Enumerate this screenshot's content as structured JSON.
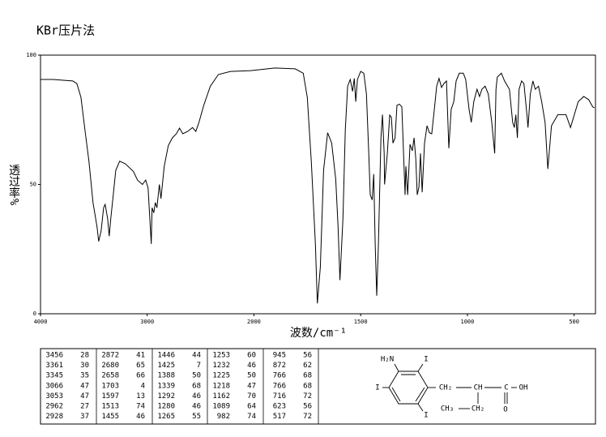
{
  "chart_data": {
    "type": "line",
    "title": "KBr压片法",
    "xlabel": "波数/cm⁻¹",
    "ylabel": "透过率%",
    "color": "#000000",
    "xlim": [
      4000,
      400
    ],
    "xticks": [
      4000,
      3000,
      2000,
      1500,
      1000,
      500
    ],
    "ylim": [
      0,
      100
    ],
    "yticks": [
      0,
      50,
      100
    ],
    "x": [
      4000,
      3886,
      3697,
      3659,
      3621,
      3583,
      3545,
      3508,
      3470,
      3455,
      3432,
      3409,
      3394,
      3371,
      3356,
      3341,
      3318,
      3295,
      3258,
      3205,
      3129,
      3091,
      3045,
      3015,
      2992,
      2962,
      2955,
      2939,
      2924,
      2909,
      2886,
      2871,
      2841,
      2803,
      2765,
      2727,
      2697,
      2667,
      2621,
      2576,
      2545,
      2515,
      2470,
      2409,
      2333,
      2220,
      2030,
      1902,
      1807,
      1769,
      1750,
      1731,
      1712,
      1703,
      1689,
      1674,
      1655,
      1636,
      1617,
      1606,
      1597,
      1583,
      1572,
      1561,
      1549,
      1538,
      1530,
      1523,
      1515,
      1500,
      1485,
      1473,
      1462,
      1455,
      1446,
      1439,
      1432,
      1425,
      1417,
      1405,
      1398,
      1390,
      1388,
      1375,
      1364,
      1356,
      1349,
      1339,
      1330,
      1318,
      1307,
      1292,
      1288,
      1280,
      1269,
      1258,
      1250,
      1242,
      1235,
      1227,
      1220,
      1212,
      1201,
      1189,
      1178,
      1167,
      1155,
      1144,
      1133,
      1121,
      1110,
      1098,
      1087,
      1076,
      1064,
      1053,
      1038,
      1019,
      1008,
      992,
      982,
      970,
      955,
      943,
      932,
      917,
      902,
      886,
      872,
      866,
      860,
      841,
      826,
      803,
      788,
      780,
      773,
      766,
      758,
      746,
      735,
      720,
      716,
      705,
      693,
      682,
      667,
      652,
      636,
      623,
      606,
      576,
      538,
      517,
      481,
      455,
      432,
      413,
      405
    ],
    "values": [
      90.6,
      90.6,
      90,
      89,
      83.7,
      71,
      58.6,
      43,
      33.5,
      28,
      32,
      41,
      42.3,
      36.7,
      30,
      37,
      46,
      55.5,
      59,
      58,
      55,
      51.7,
      50,
      51.7,
      48.6,
      27,
      41,
      39,
      43,
      41,
      50,
      44.5,
      57,
      65,
      68,
      69.6,
      71.8,
      69.6,
      70.5,
      72,
      70.5,
      74,
      80.6,
      88,
      92.5,
      93.7,
      94,
      95,
      94.7,
      93,
      83.7,
      58.6,
      27,
      4,
      18,
      55.5,
      70,
      66,
      52,
      33.5,
      13,
      36.7,
      71,
      88,
      90.6,
      86,
      91,
      82,
      90.6,
      93.7,
      93,
      85,
      61.8,
      46,
      44,
      54,
      27,
      7,
      27,
      68,
      77,
      62,
      50,
      62,
      76.8,
      76,
      66,
      68,
      80.6,
      81,
      80,
      46,
      57,
      46,
      65.5,
      63,
      68,
      60,
      46,
      49,
      62,
      47,
      66,
      72.7,
      70,
      69.6,
      79,
      88,
      91,
      87.5,
      89,
      90,
      64,
      79,
      82,
      90,
      93,
      93,
      90.6,
      79,
      74,
      82,
      86.8,
      84,
      86.8,
      88,
      85,
      74,
      62,
      86.8,
      91.5,
      93,
      90,
      86.8,
      74,
      72,
      77,
      68,
      86.8,
      90,
      89,
      76,
      72,
      85,
      90,
      86.8,
      88,
      82,
      74,
      56,
      72.7,
      77,
      77,
      72,
      82,
      84,
      82.8,
      80,
      79.6
    ]
  },
  "peak_table": [
    [
      [
        3456,
        28
      ],
      [
        3361,
        30
      ],
      [
        3345,
        35
      ],
      [
        3066,
        47
      ],
      [
        3053,
        47
      ],
      [
        2962,
        27
      ],
      [
        2928,
        37
      ]
    ],
    [
      [
        2872,
        41
      ],
      [
        2680,
        65
      ],
      [
        2658,
        66
      ],
      [
        1703,
        4
      ],
      [
        1597,
        13
      ],
      [
        1513,
        74
      ],
      [
        1455,
        46
      ]
    ],
    [
      [
        1446,
        44
      ],
      [
        1425,
        7
      ],
      [
        1388,
        50
      ],
      [
        1339,
        68
      ],
      [
        1292,
        46
      ],
      [
        1280,
        46
      ],
      [
        1265,
        55
      ]
    ],
    [
      [
        1253,
        60
      ],
      [
        1232,
        46
      ],
      [
        1225,
        50
      ],
      [
        1218,
        47
      ],
      [
        1162,
        70
      ],
      [
        1089,
        64
      ],
      [
        982,
        74
      ]
    ],
    [
      [
        945,
        56
      ],
      [
        872,
        62
      ],
      [
        766,
        68
      ],
      [
        766,
        68
      ],
      [
        716,
        72
      ],
      [
        623,
        56
      ],
      [
        517,
        72
      ]
    ]
  ],
  "structure": {
    "atoms": [
      "H₂N",
      "I",
      "I",
      "CH₂",
      "CH",
      "C",
      "OH",
      "I",
      "CH₃",
      "CH₂",
      "O"
    ]
  }
}
